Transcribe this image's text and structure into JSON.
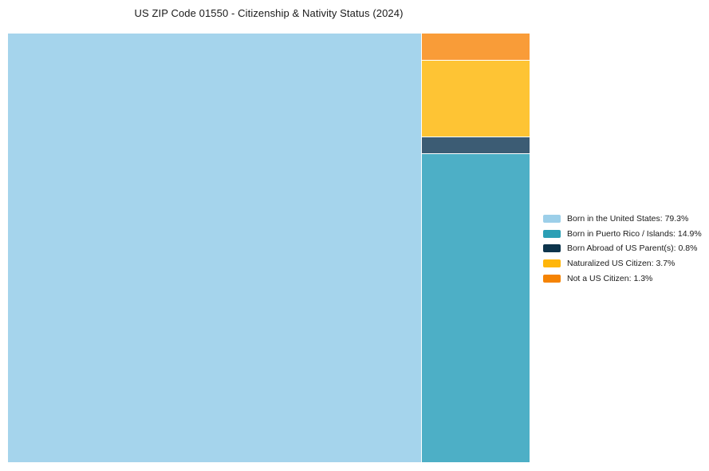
{
  "title": "US ZIP Code 01550 - Citizenship & Nativity Status (2024)",
  "chart_data": {
    "type": "treemap",
    "title": "US ZIP Code 01550 - Citizenship & Nativity Status (2024)",
    "unit": "%",
    "items": [
      {
        "label": "Born in the United States",
        "value": 79.3,
        "legend_text": "Born in the United States: 79.3%",
        "cell_color": "#A5D4EC",
        "legend_color": "#9CCFE9"
      },
      {
        "label": "Born in Puerto Rico / Islands",
        "value": 14.9,
        "legend_text": "Born in Puerto Rico / Islands: 14.9%",
        "cell_color": "#4DAFC6",
        "legend_color": "#2B9FB5"
      },
      {
        "label": "Born Abroad of US Parent(s)",
        "value": 0.8,
        "legend_text": "Born Abroad of US Parent(s): 0.8%",
        "cell_color": "#3C5C74",
        "legend_color": "#0D344C"
      },
      {
        "label": "Naturalized US Citizen",
        "value": 3.7,
        "legend_text": "Naturalized US Citizen: 3.7%",
        "cell_color": "#FEC434",
        "legend_color": "#FFB60A"
      },
      {
        "label": "Not a US Citizen",
        "value": 1.3,
        "legend_text": "Not a US Citizen: 1.3%",
        "cell_color": "#F99C38",
        "legend_color": "#F58303"
      }
    ],
    "layout": {
      "legend_position": "right-center",
      "background": "#FFFFFF",
      "right_column_order_top_to_bottom": [
        "Not a US Citizen",
        "Naturalized US Citizen",
        "Born Abroad of US Parent(s)",
        "Born in Puerto Rico / Islands"
      ]
    }
  }
}
